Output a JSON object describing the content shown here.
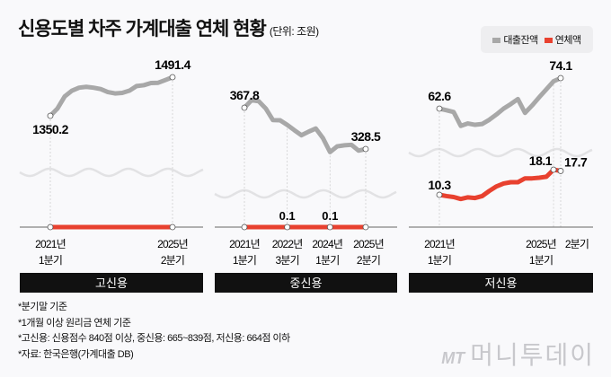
{
  "header": {
    "title": "신용도별 차주 가계대출 연체 현황",
    "unit": "(단위: 조원)"
  },
  "legend": [
    {
      "label": "대출잔액",
      "color": "#a8a8a8"
    },
    {
      "label": "연체액",
      "color": "#e8412f"
    }
  ],
  "notes": [
    "*분기말 기준",
    "*1개월 이상 원리금 연체 기준",
    "*고신용: 신용점수 840점 이상, 중신용: 665~839점, 저신용: 664점 이하",
    "*자료: 한국은행(가계대출 DB)"
  ],
  "logo": {
    "mark": "MT",
    "name": "머니투데이"
  },
  "chart_data": [
    {
      "type": "line",
      "title": "고신용",
      "x": [
        "2021Q1",
        "2021Q2",
        "2021Q3",
        "2021Q4",
        "2022Q1",
        "2022Q2",
        "2022Q3",
        "2022Q4",
        "2023Q1",
        "2023Q2",
        "2023Q3",
        "2023Q4",
        "2024Q1",
        "2024Q2",
        "2024Q3",
        "2024Q4",
        "2025Q1",
        "2025Q2"
      ],
      "series": [
        {
          "name": "대출잔액",
          "values": [
            1350.2,
            1377,
            1421,
            1442,
            1453,
            1456,
            1453,
            1448,
            1437,
            1432,
            1434,
            1442,
            1459,
            1462,
            1470,
            1471,
            1481,
            1491.4
          ]
        }
      ],
      "delinquency_line": true,
      "labels": [
        {
          "text": "1350.2",
          "index": 0,
          "series": 0
        },
        {
          "text": "1491.4",
          "index": 17,
          "series": 0
        }
      ],
      "xticks": [
        {
          "index": 0,
          "line1": "2021년",
          "line2": "1분기"
        },
        {
          "index": 17,
          "line1": "2025년",
          "line2": "2분기"
        }
      ]
    },
    {
      "type": "line",
      "title": "중신용",
      "x": [
        "2021Q1",
        "2021Q2",
        "2021Q3",
        "2021Q4",
        "2022Q1",
        "2022Q2",
        "2022Q3",
        "2022Q4",
        "2023Q1",
        "2023Q2",
        "2023Q3",
        "2023Q4",
        "2024Q1",
        "2024Q2",
        "2024Q3",
        "2024Q4",
        "2025Q1",
        "2025Q2"
      ],
      "series": [
        {
          "name": "대출잔액",
          "values": [
            367.8,
            374.9,
            374,
            367,
            356,
            355.8,
            351.5,
            346.4,
            341.6,
            345,
            348,
            339,
            325.6,
            331,
            332,
            332.5,
            327,
            328.5
          ]
        }
      ],
      "delinquency_line": true,
      "red_points": [
        {
          "index": 0
        },
        {
          "index": 6,
          "text": "0.1"
        },
        {
          "index": 12,
          "text": "0.1"
        },
        {
          "index": 17
        }
      ],
      "labels": [
        {
          "text": "367.8",
          "index": 0,
          "series": 0
        },
        {
          "text": "328.5",
          "index": 17,
          "series": 0
        }
      ],
      "xticks": [
        {
          "index": 0,
          "line1": "2021년",
          "line2": "1분기"
        },
        {
          "index": 6,
          "line1": "2022년",
          "line2": "3분기"
        },
        {
          "index": 12,
          "line1": "2024년",
          "line2": "1분기"
        },
        {
          "index": 17,
          "line1": "2025년",
          "line2": "2분기"
        }
      ]
    },
    {
      "type": "line",
      "title": "저신용",
      "x": [
        "2021Q1",
        "2021Q2",
        "2021Q3",
        "2021Q4",
        "2022Q1",
        "2022Q2",
        "2022Q3",
        "2022Q4",
        "2023Q1",
        "2023Q2",
        "2023Q3",
        "2023Q4",
        "2024Q1",
        "2024Q2",
        "2024Q3",
        "2024Q4",
        "2025Q1",
        "2025Q2"
      ],
      "series": [
        {
          "name": "대출잔액",
          "values": [
            62.6,
            62.0,
            61.3,
            56.1,
            57.0,
            56.5,
            56.8,
            58.4,
            60.4,
            62.6,
            64.3,
            66.2,
            61.0,
            63.8,
            66.9,
            69.9,
            72.9,
            74.1
          ]
        },
        {
          "name": "연체액",
          "values": [
            10.3,
            9.9,
            9.6,
            9.0,
            9.5,
            9.3,
            9.9,
            11.5,
            12.9,
            13.8,
            14.2,
            14.2,
            15.4,
            15.4,
            15.6,
            15.9,
            18.1,
            17.7
          ]
        }
      ],
      "delinquency_line": false,
      "labels": [
        {
          "text": "62.6",
          "index": 0,
          "series": 0
        },
        {
          "text": "74.1",
          "index": 17,
          "series": 0
        },
        {
          "text": "10.3",
          "index": 0,
          "series": 1
        },
        {
          "text": "18.1",
          "index": 16,
          "series": 1
        },
        {
          "text": "17.7",
          "index": 17,
          "series": 1
        }
      ],
      "xticks": [
        {
          "index": 0,
          "line1": "2021년",
          "line2": "1분기"
        },
        {
          "index": 16,
          "line1": "2025년",
          "line2": "1분기"
        },
        {
          "index": 17,
          "line1": "2분기",
          "line2": ""
        }
      ]
    }
  ]
}
